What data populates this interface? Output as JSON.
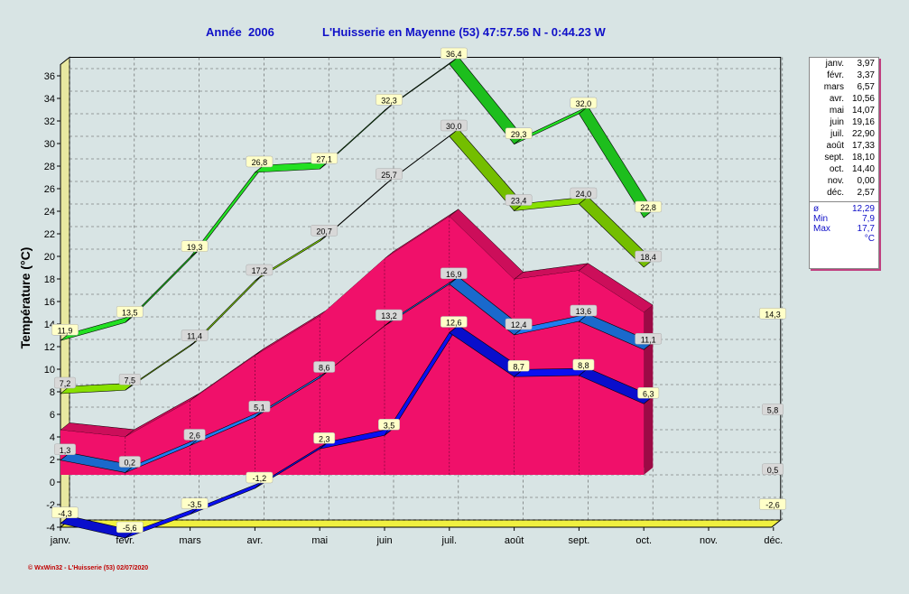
{
  "chart_data": {
    "type": "area",
    "title_year": "Année  2006",
    "title_place": "L'Huisserie en Mayenne (53) 47:57.56 N - 0:44.23 W",
    "ylabel": "Température  (°C)",
    "categories": [
      "janv.",
      "févr.",
      "mars",
      "avr.",
      "mai",
      "juin",
      "juil.",
      "août",
      "sept.",
      "oct.",
      "nov.",
      "déc."
    ],
    "ylim": [
      -4,
      37
    ],
    "yticks": [
      -4,
      -2,
      0,
      2,
      4,
      6,
      8,
      10,
      12,
      14,
      16,
      18,
      20,
      22,
      24,
      26,
      28,
      30,
      32,
      34,
      36
    ],
    "ytick_labels": [
      "-4",
      "-2",
      "0",
      "2",
      "4",
      "6",
      "8",
      "10",
      "12",
      "14",
      "16",
      "18",
      "20",
      "22",
      "24",
      "26",
      "28",
      "30",
      "32",
      "34",
      "36"
    ],
    "grid": true,
    "series": [
      {
        "values": [
          11.9,
          13.5,
          19.3,
          26.8,
          27.1,
          32.3,
          36.4,
          29.3,
          32.0,
          22.8,
          null,
          null
        ],
        "labels": [
          "11,9",
          "13,5",
          "19,3",
          "26,8",
          "27,1",
          "32,3",
          "36,4",
          "29,3",
          "32,0",
          "22,8",
          null,
          null
        ]
      },
      {
        "values": [
          7.2,
          7.5,
          11.4,
          17.2,
          20.7,
          25.7,
          30.0,
          23.4,
          24.0,
          18.4,
          null,
          null
        ],
        "labels": [
          "7,2",
          "7,5",
          "11,4",
          "17,2",
          "20,7",
          "25,7",
          "30,0",
          "23,4",
          "24,0",
          "18,4",
          null,
          null
        ]
      },
      {
        "values": [
          3.97,
          3.37,
          6.57,
          10.56,
          14.07,
          19.16,
          22.9,
          17.33,
          18.1,
          14.4,
          null,
          null
        ]
      },
      {
        "values": [
          1.3,
          0.2,
          2.6,
          5.1,
          8.6,
          13.2,
          16.9,
          12.4,
          13.6,
          11.1,
          null,
          null
        ],
        "labels": [
          "1,3",
          "0,2",
          "2,6",
          "5,1",
          "8,6",
          "13,2",
          "16,9",
          "12,4",
          "13,6",
          "11,1",
          null,
          null
        ]
      },
      {
        "values": [
          -4.3,
          -5.6,
          -3.5,
          -1.2,
          2.3,
          3.5,
          12.6,
          8.7,
          8.8,
          6.3,
          null,
          null
        ],
        "labels": [
          "-4,3",
          "-5,6",
          "-3,5",
          "-1,2",
          "2,3",
          "3,5",
          "12,6",
          "8,7",
          "8,8",
          "6,3",
          null,
          null
        ]
      }
    ],
    "right_labels": [
      {
        "value": 14.3,
        "label": "14,3"
      },
      {
        "value": 5.8,
        "label": "5,8"
      },
      {
        "value": 0.5,
        "label": "0,5"
      },
      {
        "value": -2.6,
        "label": "-2,6"
      }
    ],
    "legend": {
      "rows": [
        {
          "m": "janv.",
          "v": "3,97"
        },
        {
          "m": "févr.",
          "v": "3,37"
        },
        {
          "m": "mars",
          "v": "6,57"
        },
        {
          "m": "avr.",
          "v": "10,56"
        },
        {
          "m": "mai",
          "v": "14,07"
        },
        {
          "m": "juin",
          "v": "19,16"
        },
        {
          "m": "juil.",
          "v": "22,90"
        },
        {
          "m": "août",
          "v": "17,33"
        },
        {
          "m": "sept.",
          "v": "18,10"
        },
        {
          "m": "oct.",
          "v": "14,40"
        },
        {
          "m": "nov.",
          "v": "0,00"
        },
        {
          "m": "déc.",
          "v": "2,57"
        }
      ],
      "stats": [
        {
          "k": "ø",
          "v": "12,29"
        },
        {
          "k": "Min",
          "v": "7,9"
        },
        {
          "k": "Max",
          "v": "17,7"
        }
      ],
      "unit": "°C"
    },
    "footer": "© WxWin32 - L'Huisserie (53) 02/07/2020",
    "colors": {
      "background": "#d8e4e4",
      "plot_bg": "#d8e4e4",
      "floor": "#f0f040",
      "max_abs": "#22e022",
      "max_avg": "#88e000",
      "mean_area": "#f0106a",
      "min_avg": "#1e7cf0",
      "min_abs": "#0a10f0",
      "label_bg_yellow": "#ffffc8",
      "label_bg_gray": "#d8d8d8"
    }
  }
}
